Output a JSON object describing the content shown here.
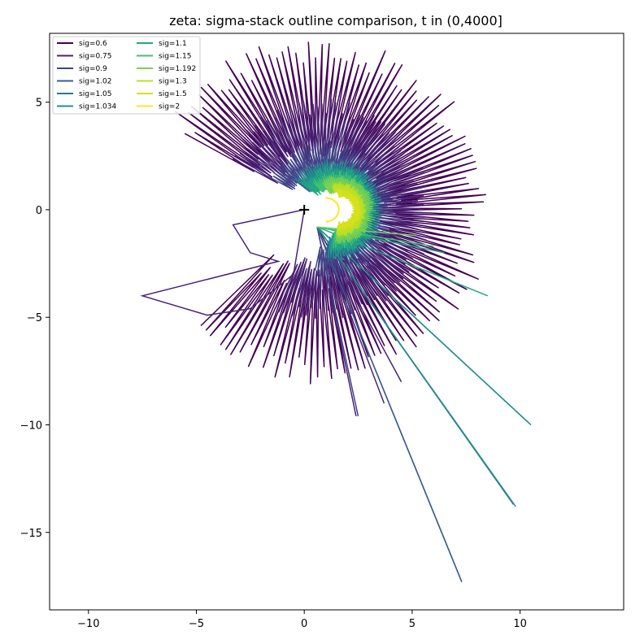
{
  "chart_data": {
    "type": "line",
    "title": "zeta: sigma-stack outline comparison, t in (0,4000]",
    "xlabel": "",
    "ylabel": "",
    "xlim": [
      -11.8,
      14.8
    ],
    "ylim": [
      -18.6,
      8.2
    ],
    "xticks": [
      -10,
      -5,
      0,
      5,
      10
    ],
    "yticks": [
      5,
      0,
      -5,
      -10,
      -15
    ],
    "xtick_labels": [
      "−10",
      "−5",
      "0",
      "5",
      "10"
    ],
    "ytick_labels": [
      "5",
      "0",
      "−5",
      "−10",
      "−15"
    ],
    "grid": false,
    "legend_position": "top-left",
    "legend_columns": 2,
    "marker": {
      "x": 0,
      "y": 0,
      "symbol": "+"
    },
    "series": [
      {
        "name": "sig=0.6",
        "color": "#440154",
        "outline": {
          "cx": 0.6,
          "cy": 0.0,
          "rmin": 3.2,
          "rmax": 7.4,
          "start_deg": -135,
          "end_deg": 150,
          "teeth": 120
        },
        "rays": []
      },
      {
        "name": "sig=0.75",
        "color": "#482475",
        "outline": {
          "cx": 0.8,
          "cy": 0.0,
          "rmin": 2.6,
          "rmax": 4.8,
          "start_deg": -115,
          "end_deg": 150,
          "teeth": 110
        },
        "rays": [
          {
            "x": 2.4,
            "y": -9.6
          },
          {
            "x": 3.7,
            "y": -9.0
          },
          {
            "x": 4.5,
            "y": -8.0
          }
        ],
        "detour": [
          {
            "x": -3.3,
            "y": -0.7
          },
          {
            "x": -2.5,
            "y": -2.0
          },
          {
            "x": -1.2,
            "y": -2.4
          },
          {
            "x": -7.5,
            "y": -4.0
          },
          {
            "x": -4.5,
            "y": -4.9
          },
          {
            "x": -2.5,
            "y": -4.6
          },
          {
            "x": -0.5,
            "y": -3.0
          }
        ]
      },
      {
        "name": "sig=0.9",
        "color": "#414487",
        "outline": {
          "cx": 1.0,
          "cy": 0.0,
          "rmin": 1.8,
          "rmax": 3.0,
          "start_deg": -100,
          "end_deg": 150,
          "teeth": 90
        },
        "rays": [
          {
            "x": 2.5,
            "y": -9.6
          },
          {
            "x": 7.3,
            "y": -17.3
          }
        ]
      },
      {
        "name": "sig=1.02",
        "color": "#355f8d",
        "outline": {
          "cx": 1.2,
          "cy": 0.0,
          "rmin": 1.4,
          "rmax": 2.3,
          "start_deg": -95,
          "end_deg": 140,
          "teeth": 80
        },
        "rays": [
          {
            "x": 7.3,
            "y": -17.3
          },
          {
            "x": 9.7,
            "y": -13.7
          }
        ]
      },
      {
        "name": "sig=1.05",
        "color": "#2a788e",
        "outline": {
          "cx": 1.3,
          "cy": 0.0,
          "rmin": 1.3,
          "rmax": 2.1,
          "start_deg": -95,
          "end_deg": 140,
          "teeth": 75
        },
        "rays": [
          {
            "x": 10.5,
            "y": -10.0
          },
          {
            "x": 9.7,
            "y": -13.7
          }
        ]
      },
      {
        "name": "sig=1.034",
        "color": "#21918c",
        "outline": {
          "cx": 1.3,
          "cy": 0.0,
          "rmin": 1.3,
          "rmax": 2.2,
          "start_deg": -95,
          "end_deg": 140,
          "teeth": 75
        },
        "rays": [
          {
            "x": 10.5,
            "y": -10.0
          },
          {
            "x": 9.8,
            "y": -13.8
          }
        ]
      },
      {
        "name": "sig=1.1",
        "color": "#22a884",
        "outline": {
          "cx": 1.4,
          "cy": 0.0,
          "rmin": 1.1,
          "rmax": 1.9,
          "start_deg": -95,
          "end_deg": 140,
          "teeth": 70
        },
        "rays": [
          {
            "x": 8.5,
            "y": -4.0
          },
          {
            "x": 6.5,
            "y": -2.0
          }
        ]
      },
      {
        "name": "sig=1.15",
        "color": "#44bf70",
        "outline": {
          "cx": 1.5,
          "cy": 0.0,
          "rmin": 1.0,
          "rmax": 1.7,
          "start_deg": -95,
          "end_deg": 130,
          "teeth": 65
        },
        "rays": [
          {
            "x": 6.0,
            "y": -1.7
          }
        ]
      },
      {
        "name": "sig=1.192",
        "color": "#7ad151",
        "outline": {
          "cx": 1.6,
          "cy": 0.0,
          "rmin": 0.9,
          "rmax": 1.5,
          "start_deg": -95,
          "end_deg": 120,
          "teeth": 60
        },
        "rays": [
          {
            "x": 5.2,
            "y": -1.2
          }
        ]
      },
      {
        "name": "sig=1.3",
        "color": "#bddf26",
        "outline": {
          "cx": 1.6,
          "cy": 0.0,
          "rmin": 0.8,
          "rmax": 1.2,
          "start_deg": -95,
          "end_deg": 105,
          "teeth": 55
        },
        "rays": []
      },
      {
        "name": "sig=1.5",
        "color": "#d5e21a",
        "outline": {
          "cx": 1.7,
          "cy": 0.0,
          "rmin": 0.6,
          "rmax": 0.9,
          "start_deg": -100,
          "end_deg": 100,
          "teeth": 40
        },
        "rays": []
      },
      {
        "name": "sig=2",
        "color": "#fde725",
        "dshape": {
          "x0": 1.0,
          "rx": 0.6,
          "ry": 0.55
        },
        "rays": []
      }
    ]
  }
}
